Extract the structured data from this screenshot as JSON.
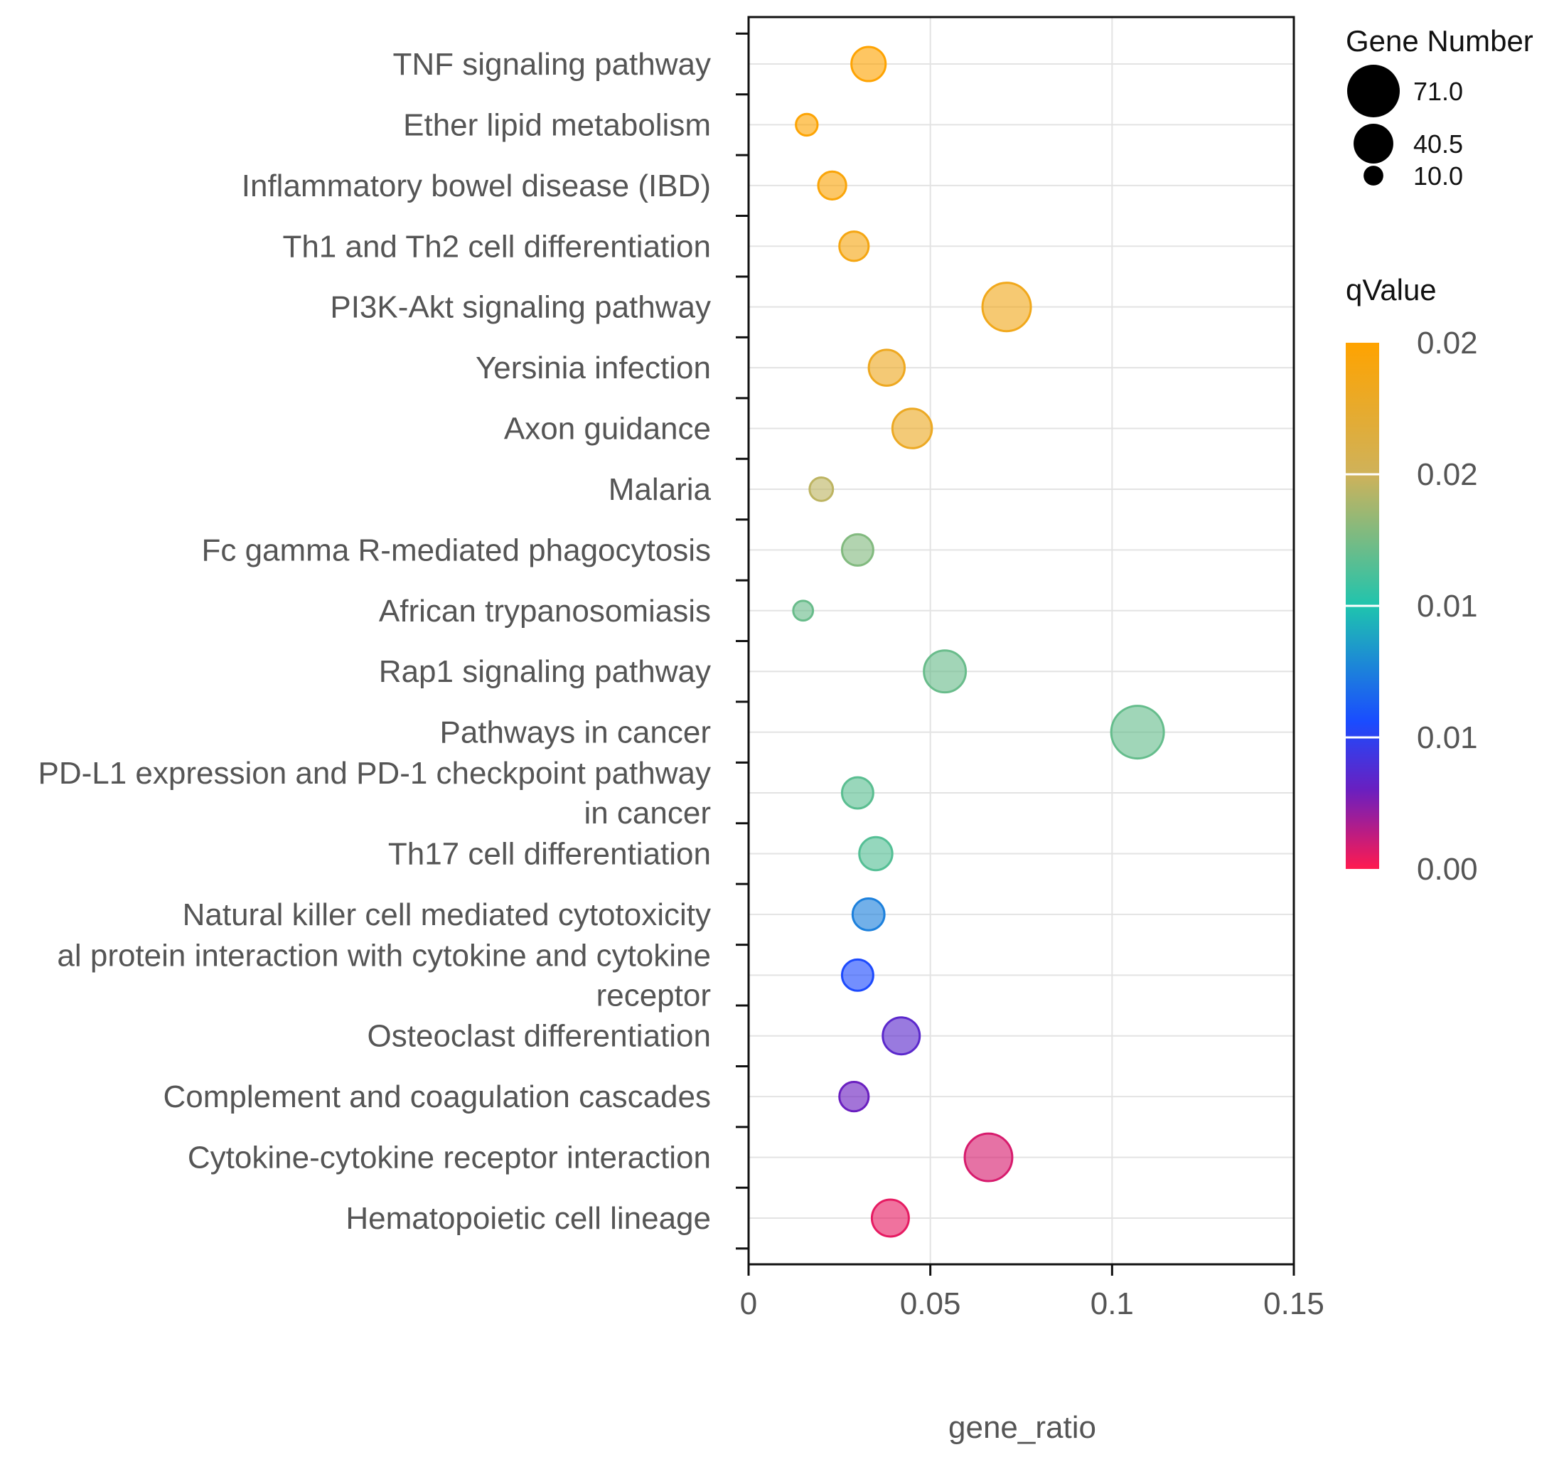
{
  "chart_data": {
    "type": "scatter",
    "xlabel": "gene_ratio",
    "ylabel": "",
    "xlim": [
      0,
      0.15
    ],
    "x_ticks": [
      0,
      0.05,
      0.1,
      0.15
    ],
    "x_tick_labels": [
      "0",
      "0.05",
      "0.1",
      "0.15"
    ],
    "grid": true,
    "points": [
      {
        "label": [
          "TNF signaling pathway"
        ],
        "x": 0.033,
        "size": 30,
        "q": 0.0199
      },
      {
        "label": [
          "Ether lipid metabolism"
        ],
        "x": 0.016,
        "size": 12,
        "q": 0.0198
      },
      {
        "label": [
          "Inflammatory bowel disease (IBD)"
        ],
        "x": 0.023,
        "size": 20,
        "q": 0.0195
      },
      {
        "label": [
          "Th1 and Th2 cell differentiation"
        ],
        "x": 0.029,
        "size": 22,
        "q": 0.019
      },
      {
        "label": [
          "PI3K-Akt signaling pathway"
        ],
        "x": 0.071,
        "size": 60,
        "q": 0.0185
      },
      {
        "label": [
          "Yersinia infection"
        ],
        "x": 0.038,
        "size": 33,
        "q": 0.0182
      },
      {
        "label": [
          "Axon guidance"
        ],
        "x": 0.045,
        "size": 40,
        "q": 0.018
      },
      {
        "label": [
          "Malaria"
        ],
        "x": 0.02,
        "size": 14,
        "q": 0.0145
      },
      {
        "label": [
          "Fc gamma R-mediated phagocytosis"
        ],
        "x": 0.03,
        "size": 25,
        "q": 0.0128
      },
      {
        "label": [
          "African trypanosomiasis"
        ],
        "x": 0.015,
        "size": 10,
        "q": 0.0121
      },
      {
        "label": [
          "Rap1 signaling pathway"
        ],
        "x": 0.054,
        "size": 45,
        "q": 0.0121
      },
      {
        "label": [
          "Pathways in cancer"
        ],
        "x": 0.107,
        "size": 71,
        "q": 0.012
      },
      {
        "label": [
          "PD-L1 expression and PD-1 checkpoint pathway",
          "in cancer"
        ],
        "x": 0.03,
        "size": 25,
        "q": 0.0117
      },
      {
        "label": [
          "Th17 cell differentiation"
        ],
        "x": 0.035,
        "size": 28,
        "q": 0.0115
      },
      {
        "label": [
          "Natural killer cell mediated cytotoxicity"
        ],
        "x": 0.033,
        "size": 26,
        "q": 0.0075
      },
      {
        "label": [
          "al protein interaction with cytokine and cytokine",
          "receptor"
        ],
        "x": 0.03,
        "size": 25,
        "q": 0.0055
      },
      {
        "label": [
          "Osteoclast differentiation"
        ],
        "x": 0.042,
        "size": 35,
        "q": 0.0035
      },
      {
        "label": [
          "Complement and coagulation cascades"
        ],
        "x": 0.029,
        "size": 22,
        "q": 0.003
      },
      {
        "label": [
          "Cytokine-cytokine receptor interaction"
        ],
        "x": 0.066,
        "size": 58,
        "q": 0.0008
      },
      {
        "label": [
          "Hematopoietic cell lineage"
        ],
        "x": 0.039,
        "size": 35,
        "q": 0.0005
      }
    ],
    "size_legend": {
      "title": "Gene Number",
      "items": [
        {
          "label": "71.0",
          "value": 71
        },
        {
          "label": "40.5",
          "value": 40.5
        },
        {
          "label": "10.0",
          "value": 10
        }
      ]
    },
    "color_legend": {
      "title": "qValue",
      "min": 0,
      "max": 0.02,
      "tick_values": [
        0.02,
        0.015,
        0.01,
        0.005,
        0
      ],
      "tick_labels": [
        "0.02",
        "0.02",
        "0.01",
        "0.01",
        "0.00"
      ],
      "colors": [
        "#ffa300",
        "#d1b35c",
        "#2cbfae",
        "#1a66ff",
        "#5a20c8",
        "#ff1a4f"
      ]
    }
  }
}
